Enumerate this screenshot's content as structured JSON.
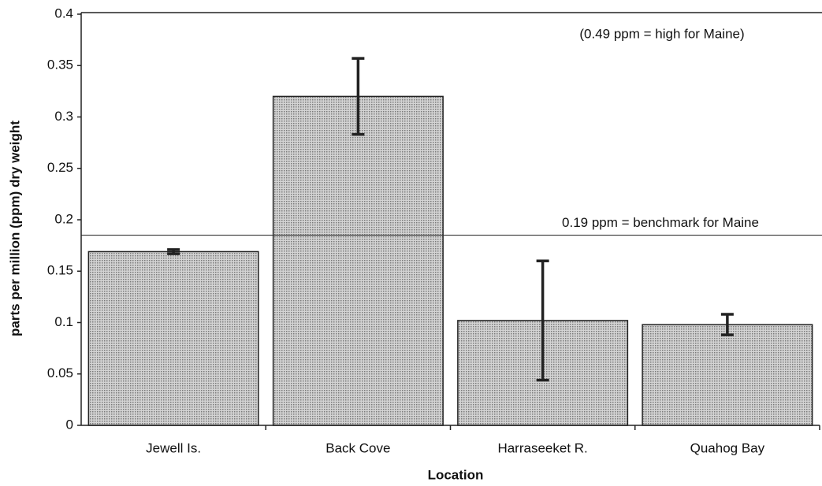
{
  "chart_data": {
    "type": "bar",
    "categories": [
      "Jewell Is.",
      "Back Cove",
      "Harraseeket R.",
      "Quahog Bay"
    ],
    "values": [
      0.169,
      0.32,
      0.102,
      0.098
    ],
    "errors": [
      0.002,
      0.037,
      0.058,
      0.01
    ],
    "color": "#b4b4b4",
    "ylim": [
      0,
      0.4
    ],
    "yticks": [
      0,
      0.05,
      0.1,
      0.15,
      0.2,
      0.25,
      0.3,
      0.35,
      0.4
    ],
    "ylabel": "parts per million (ppm) dry weight",
    "xlabel": "Location",
    "reference_line": {
      "value": 0.185,
      "label": "0.19 ppm = benchmark for Maine"
    },
    "annotation": "(0.49 ppm = high for Maine)"
  }
}
